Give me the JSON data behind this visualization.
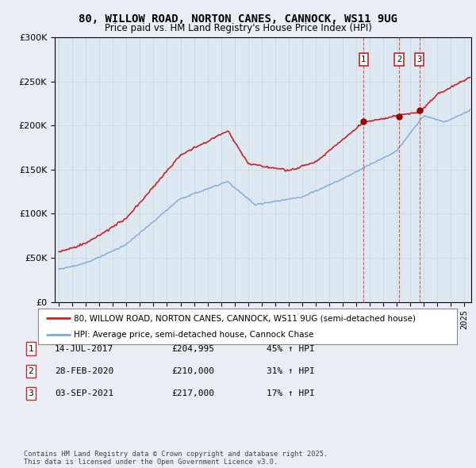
{
  "title": "80, WILLOW ROAD, NORTON CANES, CANNOCK, WS11 9UG",
  "subtitle": "Price paid vs. HM Land Registry's House Price Index (HPI)",
  "legend_line1": "80, WILLOW ROAD, NORTON CANES, CANNOCK, WS11 9UG (semi-detached house)",
  "legend_line2": "HPI: Average price, semi-detached house, Cannock Chase",
  "transaction1_date": "14-JUL-2017",
  "transaction1_price": "£204,995",
  "transaction1_hpi": "45% ↑ HPI",
  "transaction1_year": 2017.54,
  "transaction1_value": 204995,
  "transaction2_date": "28-FEB-2020",
  "transaction2_price": "£210,000",
  "transaction2_hpi": "31% ↑ HPI",
  "transaction2_year": 2020.16,
  "transaction2_value": 210000,
  "transaction3_date": "03-SEP-2021",
  "transaction3_price": "£217,000",
  "transaction3_hpi": "17% ↑ HPI",
  "transaction3_year": 2021.67,
  "transaction3_value": 217000,
  "footer": "Contains HM Land Registry data © Crown copyright and database right 2025.\nThis data is licensed under the Open Government Licence v3.0.",
  "hpi_color": "#7aaadd",
  "price_color": "#cc2222",
  "dot_color": "#990000",
  "dashed_color": "#dd4444",
  "background_color": "#e8eef4",
  "plot_bg_color": "#dde8f0",
  "ylim": [
    0,
    300000
  ],
  "xlim_start": 1994.7,
  "xlim_end": 2025.5,
  "yticks": [
    0,
    50000,
    100000,
    150000,
    200000,
    250000,
    300000
  ]
}
